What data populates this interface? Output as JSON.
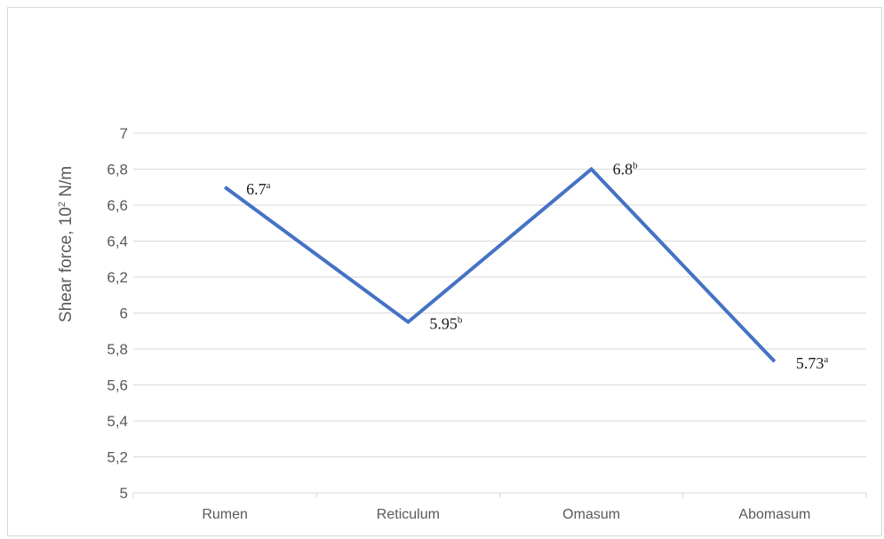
{
  "chart_data": {
    "type": "line",
    "categories": [
      "Rumen",
      "Reticulum",
      "Omasum",
      "Abomasum"
    ],
    "series": [
      {
        "values": [
          6.7,
          5.95,
          6.8,
          5.73
        ]
      }
    ],
    "data_labels": [
      {
        "value": "6.7",
        "sup": "a"
      },
      {
        "value": "5.95",
        "sup": "b"
      },
      {
        "value": "6.8",
        "sup": "b"
      },
      {
        "value": "5.73",
        "sup": "a"
      }
    ],
    "ylabel_main": "Shear force, 10",
    "ylabel_sup": "2",
    "ylabel_unit": " N/m",
    "ylim": [
      5,
      7
    ],
    "yticks": [
      "5",
      "5,2",
      "5,4",
      "5,6",
      "5,8",
      "6",
      "6,2",
      "6,4",
      "6,6",
      "6,8",
      "7"
    ],
    "grid": true,
    "line_color": "#4472c4",
    "grid_color": "#d9d9d9"
  }
}
